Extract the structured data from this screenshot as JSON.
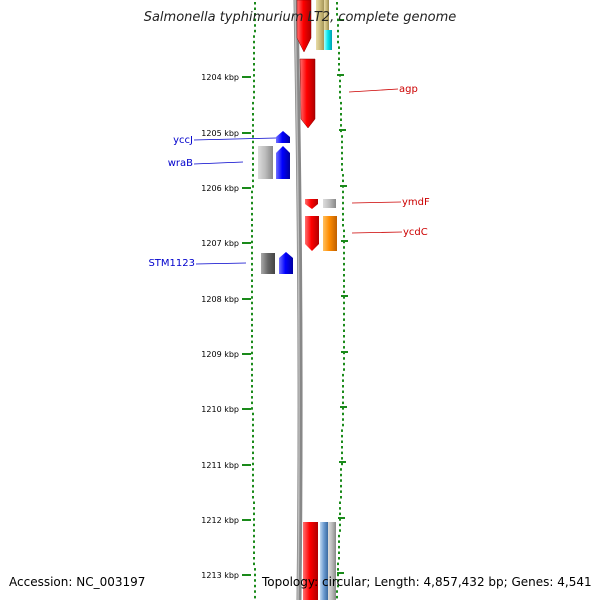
{
  "title": "Salmonella typhimurium LT2, complete genome",
  "accession": "Accession: NC_003197",
  "topology": "Topology: circular; Length: 4,857,432 bp; Genes: 4,541",
  "scale_labels": [
    "1204 kbp",
    "1205 kbp",
    "1206 kbp",
    "1207 kbp",
    "1208 kbp",
    "1209 kbp",
    "1210 kbp",
    "1211 kbp",
    "1212 kbp",
    "1213 kbp"
  ],
  "genes_left": [
    {
      "name": "yccJ",
      "color": "#0000cc"
    },
    {
      "name": "wraB",
      "color": "#0000cc"
    },
    {
      "name": "STM1123",
      "color": "#0000cc"
    }
  ],
  "genes_right": [
    {
      "name": "agp",
      "color": "#cc0000"
    },
    {
      "name": "ymdF",
      "color": "#cc0000"
    },
    {
      "name": "ycdC",
      "color": "#cc0000"
    }
  ],
  "colors": {
    "tick": "#1a8a1a",
    "backbone": "#8c8c8c",
    "red_gene": "#ff0000",
    "blue_gene": "#0000ff",
    "orange_gene": "#ff8c00",
    "cyan_gene": "#00e5ee",
    "khaki_gene": "#c8b878",
    "gray_gene": "#999999"
  }
}
